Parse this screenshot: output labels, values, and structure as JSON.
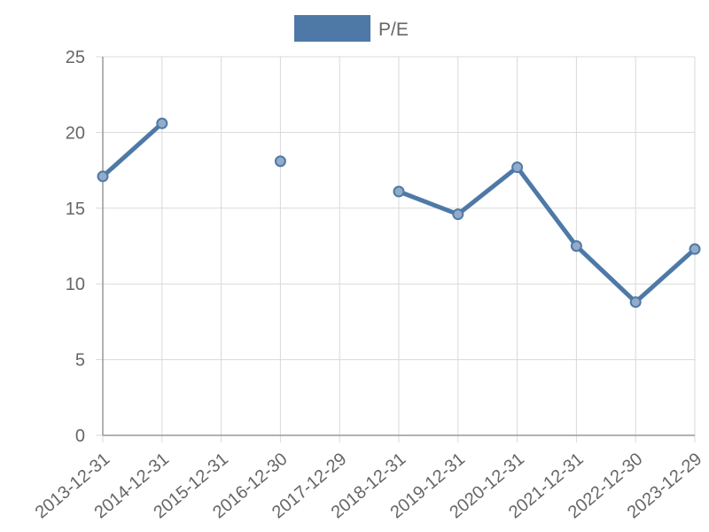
{
  "chart_data": {
    "type": "line",
    "categories": [
      "2013-12-31",
      "2014-12-31",
      "2015-12-31",
      "2016-12-30",
      "2017-12-29",
      "2018-12-31",
      "2019-12-31",
      "2020-12-31",
      "2021-12-31",
      "2022-12-30",
      "2023-12-29"
    ],
    "series": [
      {
        "name": "P/E",
        "values": [
          17.1,
          20.6,
          null,
          18.1,
          null,
          16.1,
          14.6,
          17.7,
          12.5,
          8.8,
          12.3
        ]
      }
    ],
    "ylim": [
      0,
      25
    ],
    "yticks": [
      0,
      5,
      10,
      15,
      20,
      25
    ],
    "grid": true,
    "legend": "top-center",
    "colors": {
      "line": "#4e79a7",
      "point_fill": "#93abc9",
      "grid": "#d9d9d9",
      "axis": "#999999",
      "text": "#666666"
    }
  }
}
